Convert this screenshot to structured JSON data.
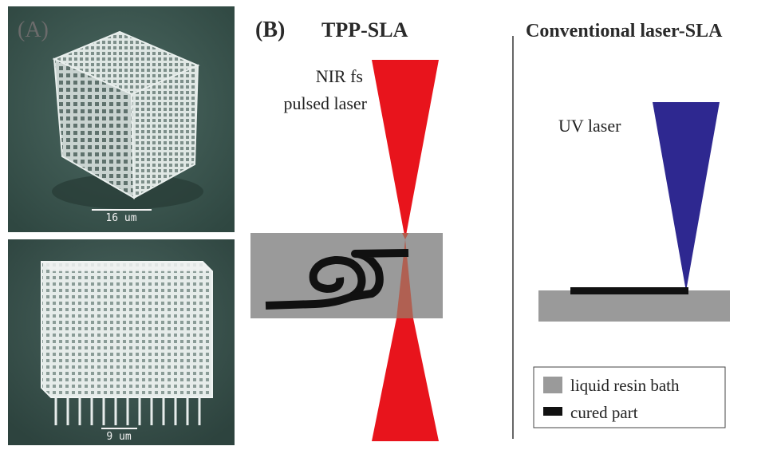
{
  "panel_a": {
    "label": "(A)",
    "top_scale_bar": "16 um",
    "bottom_scale_bar": "9 um"
  },
  "panel_b": {
    "label": "(B)",
    "left_title": "TPP-SLA",
    "right_title": "Conventional laser-SLA",
    "nir_label_line1": "NIR fs",
    "nir_label_line2": "pulsed laser",
    "uv_label": "UV laser"
  },
  "legend": {
    "items": [
      {
        "label": "liquid resin bath",
        "color": "#9a9a9a"
      },
      {
        "label": "cured part",
        "color": "#111111"
      }
    ]
  },
  "colors": {
    "nir_beam": "#e8141c",
    "uv_beam": "#2e2890",
    "resin": "#9a9a9a",
    "cured": "#111111",
    "sem_bg": "#3f5a54"
  }
}
